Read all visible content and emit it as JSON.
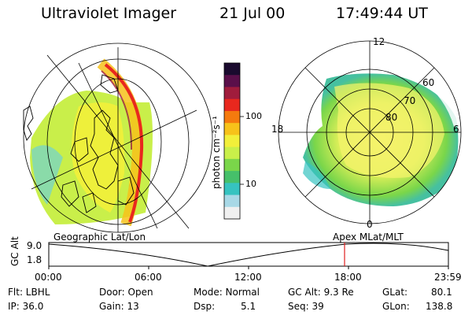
{
  "header": {
    "instrument": "Ultraviolet Imager",
    "date": "21 Jul 00",
    "time": "17:49:44 UT"
  },
  "colorbar": {
    "unit_label": "photon cm⁻²s⁻¹",
    "ticks": [
      "100",
      "10"
    ],
    "colors": [
      "#1a0a2e",
      "#5a0f4a",
      "#a01c3c",
      "#e8281e",
      "#f57a0e",
      "#f7c21a",
      "#f2ef3a",
      "#c9ef4a",
      "#7ad64a",
      "#46c06a",
      "#36c3c0",
      "#a8d8e6",
      "#f0f0f0"
    ]
  },
  "left_panel": {
    "label": "Geographic Lat/Lon"
  },
  "right_panel": {
    "label": "Apex MLat/MLT",
    "mlt_labels": [
      "12",
      "18",
      "6",
      "0"
    ],
    "mlat_labels": [
      "60",
      "70",
      "80"
    ]
  },
  "timeline": {
    "y_label": "GC Alt",
    "y_ticks": [
      "9.0",
      "1.8"
    ],
    "x_ticks": [
      "00:00",
      "06:00",
      "12:00",
      "18:00",
      "23:59"
    ],
    "marker_color": "#e02020"
  },
  "status": {
    "filter": "Flt: LBHL",
    "ip": "IP: 36.0",
    "door": "Door: Open",
    "gain": "Gain: 13",
    "mode": "Mode: Normal",
    "dsp_label": "Dsp:",
    "dsp_value": "5.1",
    "gc_alt": "GC Alt: 9.3 Re",
    "seq": "Seq: 39",
    "glat_label": "GLat:",
    "glat_value": "80.1",
    "glon_label": "GLon:",
    "glon_value": "138.8"
  }
}
